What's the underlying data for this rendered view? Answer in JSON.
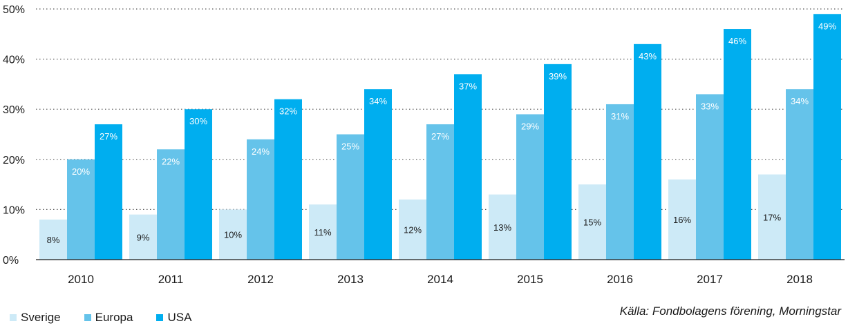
{
  "chart_data": {
    "type": "bar",
    "categories": [
      "2010",
      "2011",
      "2012",
      "2013",
      "2014",
      "2015",
      "2016",
      "2017",
      "2018"
    ],
    "series": [
      {
        "name": "Sverige",
        "color": "#cdeaf7",
        "label_color": "#1a1a1a",
        "values": [
          8,
          9,
          10,
          11,
          12,
          13,
          15,
          16,
          17
        ],
        "labels": [
          "8%",
          "9%",
          "10%",
          "11%",
          "12%",
          "13%",
          "15%",
          "16%",
          "17%"
        ]
      },
      {
        "name": "Europa",
        "color": "#65c3ea",
        "label_color": "#ffffff",
        "values": [
          20,
          22,
          24,
          25,
          27,
          29,
          31,
          33,
          34
        ],
        "labels": [
          "20%",
          "22%",
          "24%",
          "25%",
          "27%",
          "29%",
          "31%",
          "33%",
          "34%"
        ]
      },
      {
        "name": "USA",
        "color": "#00aeef",
        "label_color": "#ffffff",
        "values": [
          27,
          30,
          32,
          34,
          37,
          39,
          43,
          46,
          49
        ],
        "labels": [
          "27%",
          "30%",
          "32%",
          "34%",
          "37%",
          "39%",
          "43%",
          "46%",
          "49%"
        ]
      }
    ],
    "yticks": [
      "0%",
      "10%",
      "20%",
      "30%",
      "40%",
      "50%"
    ],
    "ylim": [
      0,
      50
    ],
    "grid": "dotted horizontal",
    "legend_position": "bottom-left",
    "title": "",
    "xlabel": "",
    "ylabel": ""
  },
  "source_note": "Källa: Fondbolagens förening, Morningstar"
}
